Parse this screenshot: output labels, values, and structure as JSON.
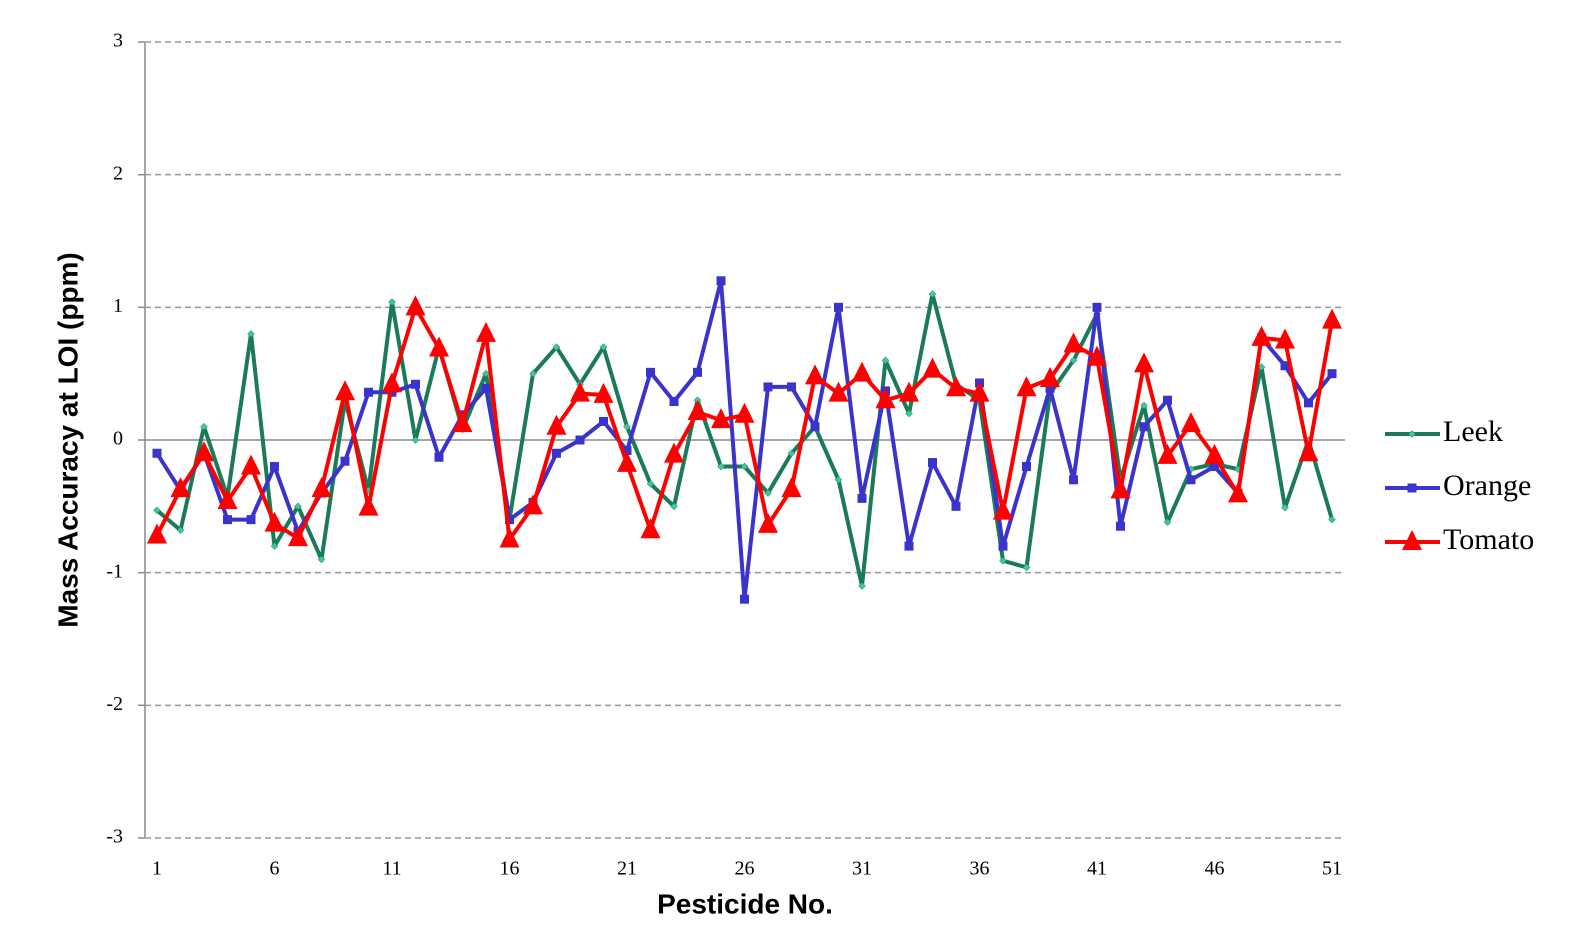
{
  "chart_data": {
    "type": "line",
    "x_label": "Pesticide No.",
    "y_label": "Mass Accuracy at LOI (ppm)",
    "categories": [
      1,
      null,
      null,
      null,
      null,
      6,
      null,
      null,
      null,
      null,
      11,
      null,
      null,
      null,
      null,
      16,
      null,
      null,
      null,
      null,
      21,
      null,
      null,
      null,
      null,
      26,
      null,
      null,
      null,
      null,
      31,
      null,
      null,
      null,
      null,
      36,
      null,
      null,
      null,
      null,
      41,
      null,
      null,
      null,
      null,
      46,
      null,
      null,
      null,
      null,
      51
    ],
    "ylim": [
      -3,
      3
    ],
    "yticks": [
      -3,
      -2,
      -1,
      0,
      1,
      2,
      3
    ],
    "grid": true,
    "legend": "right",
    "series": [
      {
        "name": "Leek",
        "color": "#1b7a57",
        "marker": "diamond",
        "values": [
          -0.53,
          -0.68,
          0.1,
          -0.43,
          0.8,
          -0.8,
          -0.5,
          -0.9,
          0.3,
          -0.38,
          1.04,
          0.0,
          0.7,
          0.08,
          0.5,
          -0.6,
          0.5,
          0.7,
          0.42,
          0.7,
          0.1,
          -0.33,
          -0.5,
          0.3,
          -0.2,
          -0.2,
          -0.4,
          -0.1,
          0.1,
          -0.3,
          -1.1,
          0.6,
          0.2,
          1.1,
          0.42,
          0.3,
          -0.91,
          -0.96,
          0.35,
          0.6,
          0.95,
          -0.3,
          0.26,
          -0.62,
          -0.22,
          -0.18,
          -0.22,
          0.55,
          -0.51,
          0.0,
          -0.6
        ]
      },
      {
        "name": "Orange",
        "color": "#3a33cc",
        "marker": "square",
        "values": [
          -0.1,
          -0.38,
          -0.1,
          -0.6,
          -0.6,
          -0.2,
          -0.69,
          -0.4,
          -0.16,
          0.36,
          0.36,
          0.42,
          -0.13,
          0.19,
          0.39,
          -0.6,
          -0.47,
          -0.1,
          0.0,
          0.14,
          -0.08,
          0.51,
          0.29,
          0.51,
          1.2,
          -1.2,
          0.4,
          0.4,
          0.1,
          1.0,
          -0.44,
          0.37,
          -0.8,
          -0.17,
          -0.5,
          0.43,
          -0.8,
          -0.2,
          0.39,
          -0.3,
          1.0,
          -0.65,
          0.1,
          0.3,
          -0.3,
          -0.2,
          -0.4,
          0.77,
          0.56,
          0.28,
          0.5
        ]
      },
      {
        "name": "Tomato",
        "color": "#ff0000",
        "marker": "triangle",
        "values": [
          -0.72,
          -0.37,
          -0.1,
          -0.46,
          -0.2,
          -0.63,
          -0.74,
          -0.37,
          0.36,
          -0.51,
          0.42,
          1.0,
          0.69,
          0.12,
          0.8,
          -0.75,
          -0.5,
          0.1,
          0.35,
          0.34,
          -0.18,
          -0.68,
          -0.11,
          0.21,
          0.15,
          0.19,
          -0.64,
          -0.37,
          0.48,
          0.35,
          0.5,
          0.3,
          0.35,
          0.53,
          0.39,
          0.35,
          -0.54,
          0.39,
          0.46,
          0.72,
          0.62,
          -0.38,
          0.57,
          -0.12,
          0.12,
          -0.12,
          -0.41,
          0.77,
          0.75,
          -0.1,
          0.9
        ]
      }
    ]
  }
}
